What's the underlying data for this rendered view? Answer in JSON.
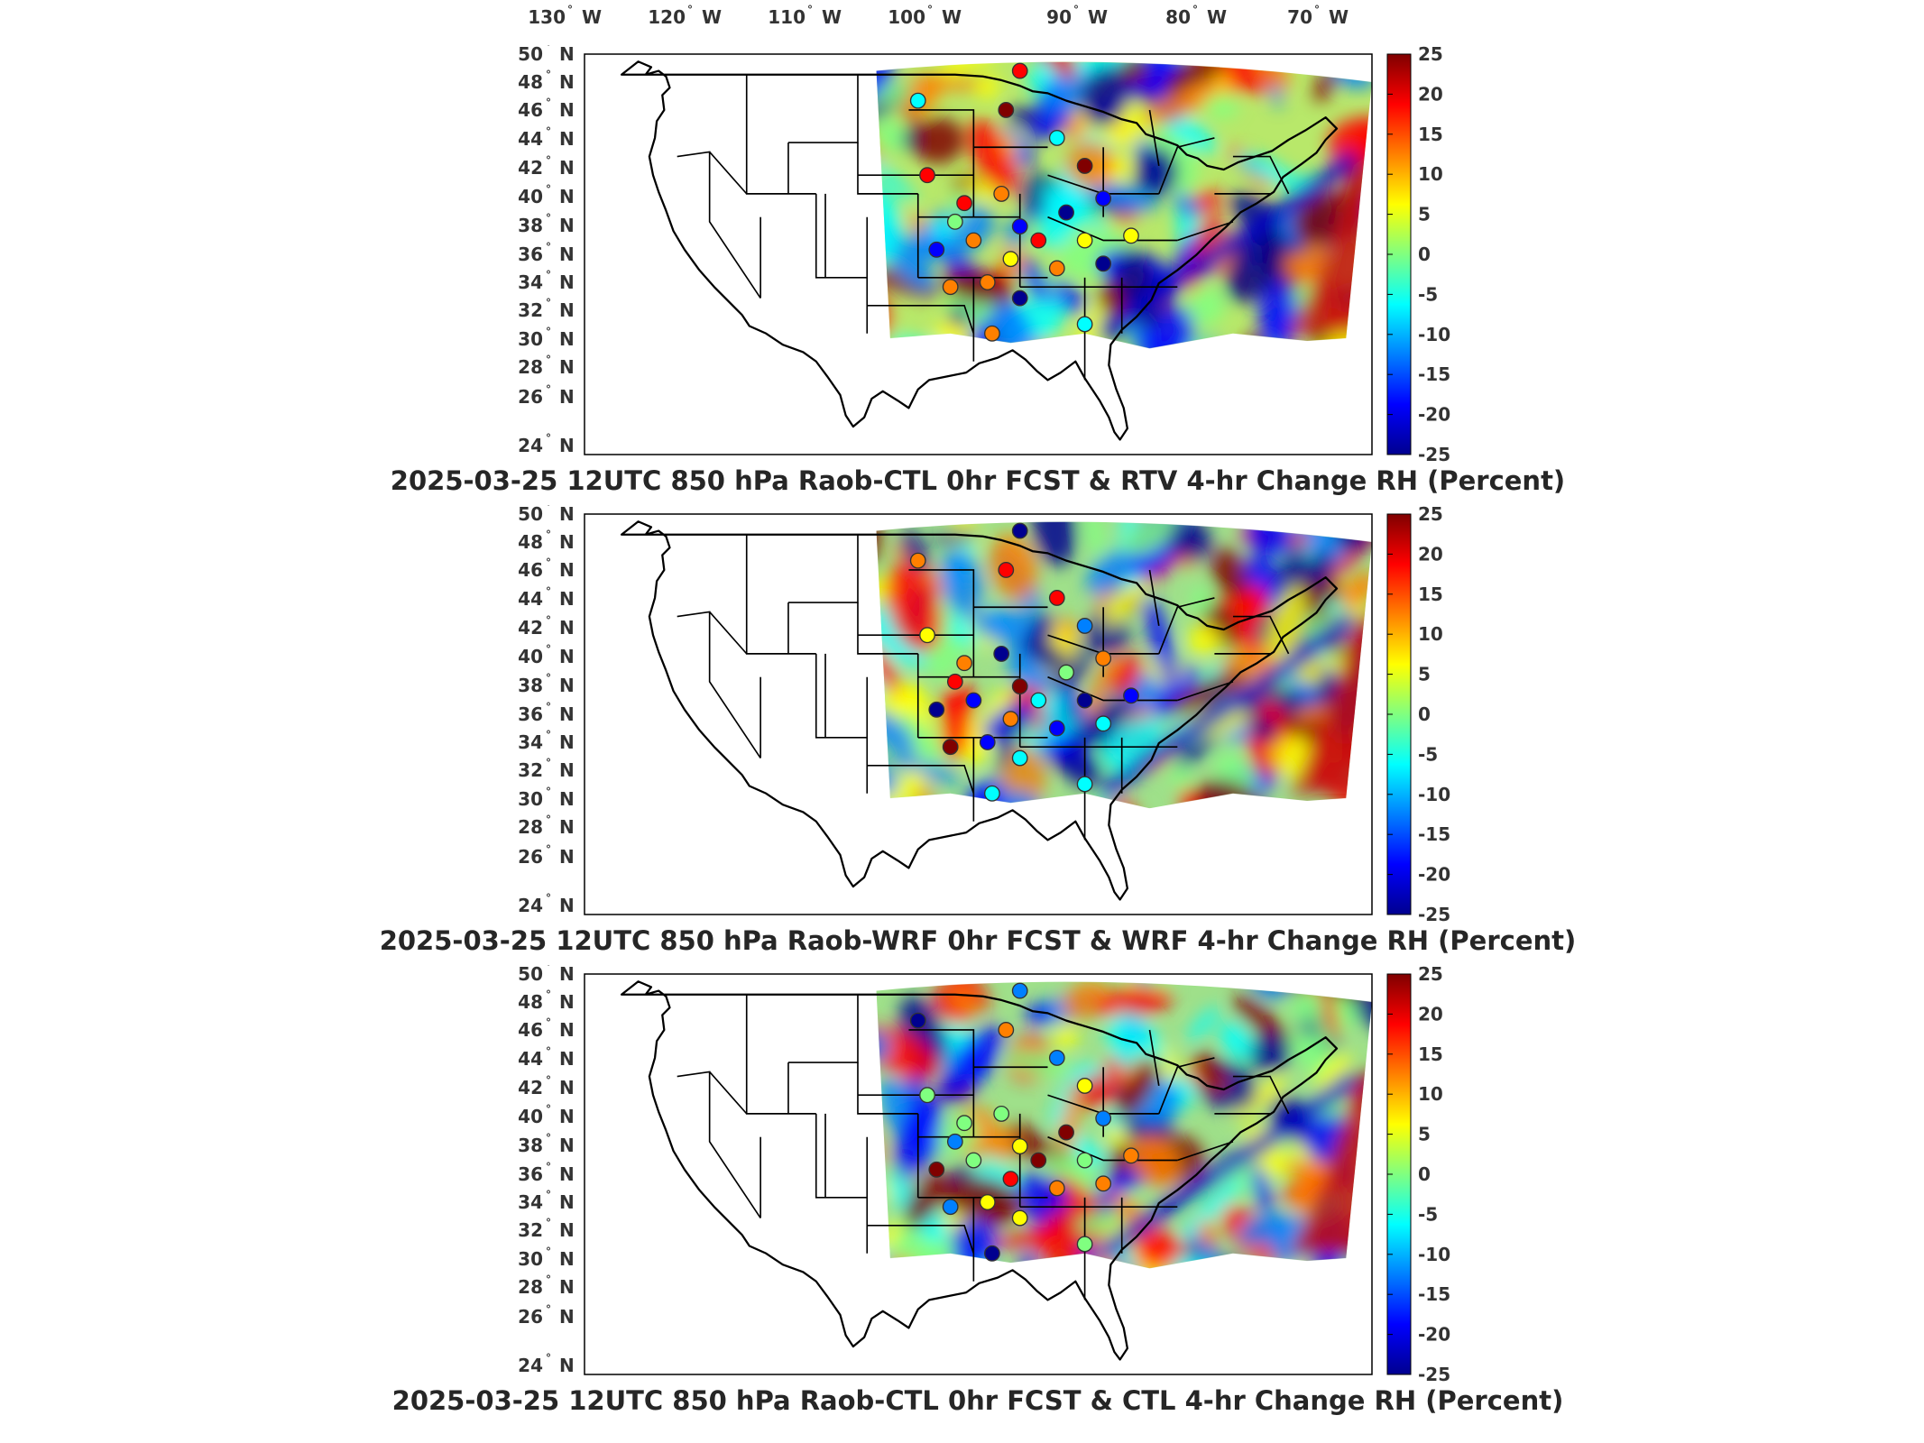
{
  "lon_labels": [
    {
      "deg": "130",
      "hem": "W"
    },
    {
      "deg": "120",
      "hem": "W"
    },
    {
      "deg": "110",
      "hem": "W"
    },
    {
      "deg": "100",
      "hem": "W"
    },
    {
      "deg": "90",
      "hem": "W"
    },
    {
      "deg": "80",
      "hem": "W"
    },
    {
      "deg": "70",
      "hem": "W"
    }
  ],
  "lat_labels": [
    {
      "deg": "50",
      "hem": "N"
    },
    {
      "deg": "48",
      "hem": "N"
    },
    {
      "deg": "46",
      "hem": "N"
    },
    {
      "deg": "44",
      "hem": "N"
    },
    {
      "deg": "42",
      "hem": "N"
    },
    {
      "deg": "40",
      "hem": "N"
    },
    {
      "deg": "38",
      "hem": "N"
    },
    {
      "deg": "36",
      "hem": "N"
    },
    {
      "deg": "34",
      "hem": "N"
    },
    {
      "deg": "32",
      "hem": "N"
    },
    {
      "deg": "30",
      "hem": "N"
    },
    {
      "deg": "28",
      "hem": "N"
    },
    {
      "deg": "26",
      "hem": "N"
    },
    {
      "deg": "24",
      "hem": "N"
    }
  ],
  "colorbar": {
    "ticks": [
      "25",
      "20",
      "15",
      "10",
      "5",
      "0",
      "-5",
      "-10",
      "-15",
      "-20",
      "-25"
    ],
    "range": [
      -25,
      25
    ],
    "colors": [
      "#00008f",
      "#0000ff",
      "#0080ff",
      "#00ffff",
      "#80ff80",
      "#ffff00",
      "#ff8000",
      "#ff0000",
      "#800000"
    ]
  },
  "panels": [
    {
      "title": "2025-03-25 12UTC 850 hPa Raob-CTL 0hr FCST & RTV 4-hr Change RH (Percent)"
    },
    {
      "title": "2025-03-25 12UTC 850 hPa Raob-WRF 0hr FCST & WRF 4-hr Change RH (Percent)"
    },
    {
      "title": "2025-03-25 12UTC 850 hPa Raob-CTL 0hr FCST & CTL 4-hr Change RH (Percent)"
    }
  ]
}
